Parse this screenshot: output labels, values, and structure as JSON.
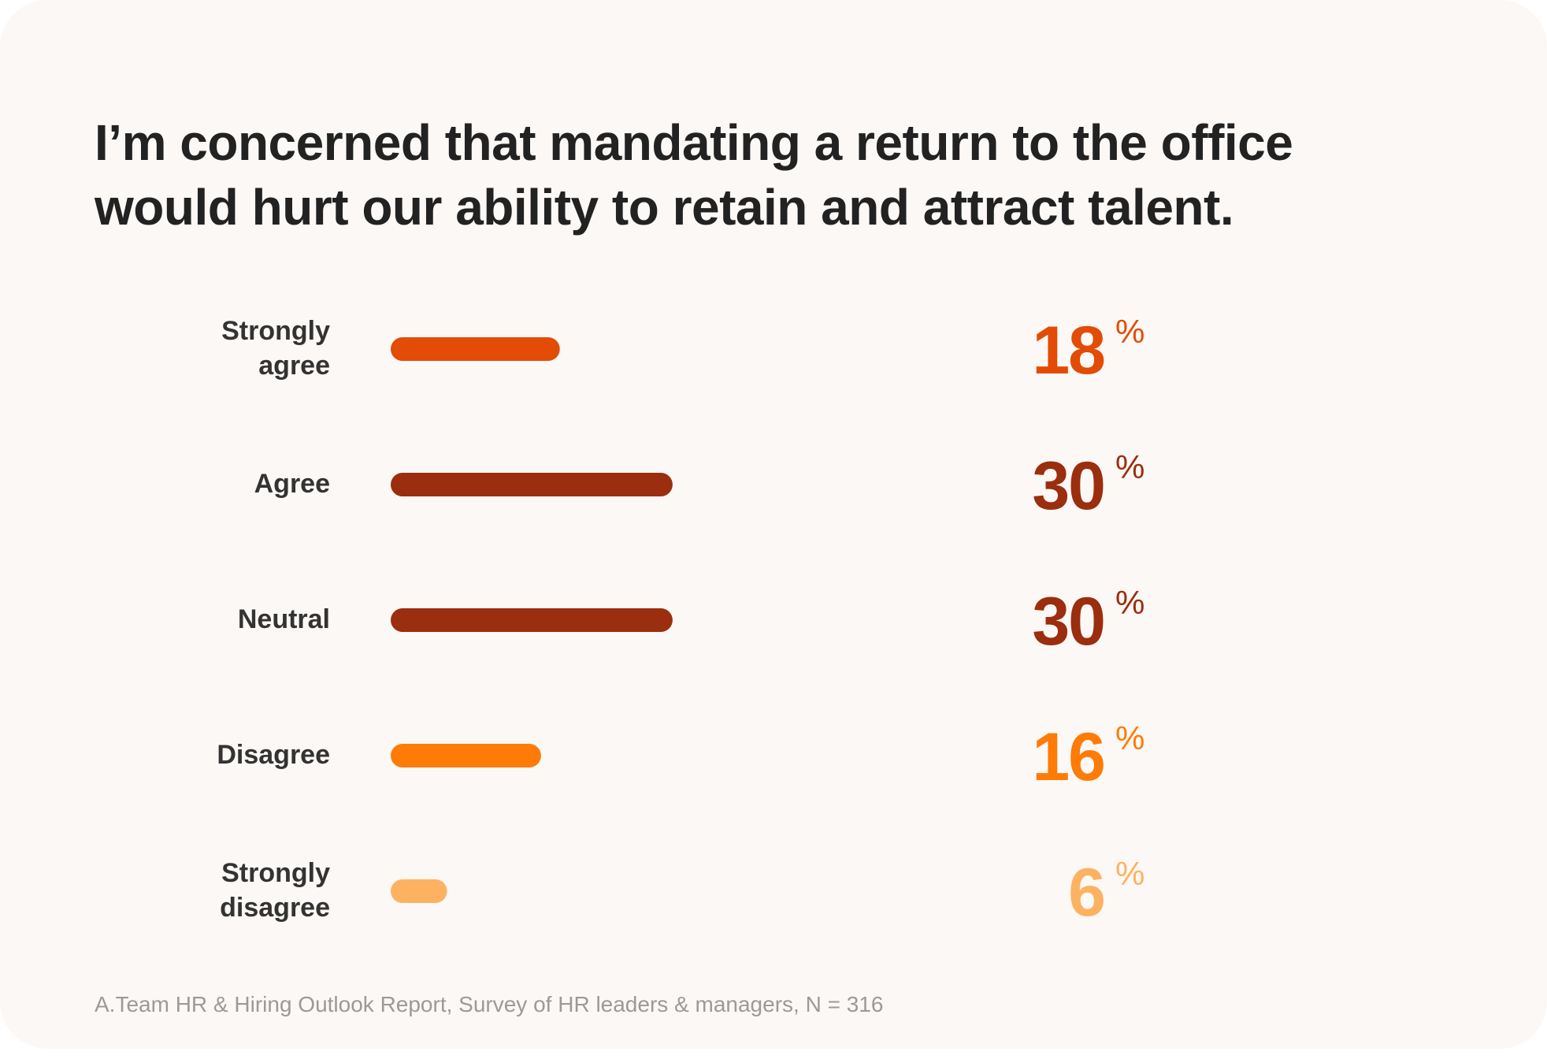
{
  "title": "I’m concerned that mandating a return to the office would hurt our ability to retain and attract talent.",
  "source": "A.Team HR & Hiring Outlook Report, Survey of HR leaders & managers, N = 316",
  "chart_data": {
    "type": "bar",
    "orientation": "horizontal",
    "title": "I’m concerned that mandating a return to the office would hurt our ability to retain and attract talent.",
    "unit": "%",
    "xlim": [
      0,
      100
    ],
    "grid": false,
    "categories": [
      [
        "Strongly",
        "agree"
      ],
      [
        "Agree"
      ],
      [
        "Neutral"
      ],
      [
        "Disagree"
      ],
      [
        "Strongly",
        "disagree"
      ]
    ],
    "values": [
      18,
      30,
      30,
      16,
      6
    ],
    "colors": [
      "#e24c06",
      "#9a2e0e",
      "#9a2e0e",
      "#fe7b07",
      "#fdb262"
    ],
    "note": "A.Team HR & Hiring Outlook Report, Survey of HR leaders & managers, N = 316"
  }
}
